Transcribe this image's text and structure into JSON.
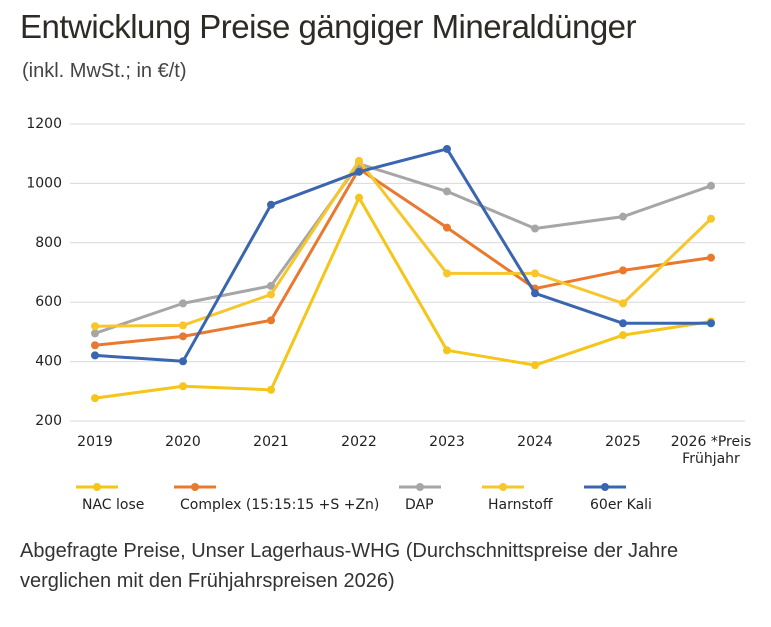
{
  "chart_data": {
    "type": "line",
    "title": "Entwicklung Preise gängiger Mineraldünger",
    "subtitle": "(inkl. MwSt.; in €/t)",
    "caption": "Abgefragte Preise, Unser Lagerhaus-WHG (Durchschnittspreise der Jahre verglichen mit den Frühjahrspreisen 2026)",
    "categories": [
      "2019",
      "2020",
      "2021",
      "2022",
      "2023",
      "2024",
      "2025",
      "2026 *Preis Frühjahr"
    ],
    "series": [
      {
        "name": "NAC lose",
        "color": "#f5c518",
        "values": [
          277,
          317,
          305,
          952,
          438,
          388,
          489,
          535
        ]
      },
      {
        "name": "Complex (15:15:15 +S +Zn)",
        "color": "#e8792f",
        "values": [
          455,
          485,
          539,
          1049,
          851,
          646,
          707,
          750
        ]
      },
      {
        "name": "DAP",
        "color": "#a6a6a6",
        "values": [
          495,
          596,
          655,
          1066,
          973,
          848,
          888,
          992
        ]
      },
      {
        "name": "Harnstoff",
        "color": "#f7c62b",
        "values": [
          519,
          522,
          626,
          1076,
          697,
          697,
          596,
          881
        ]
      },
      {
        "name": "60er Kali",
        "color": "#3a66b0",
        "values": [
          421,
          401,
          928,
          1039,
          1116,
          630,
          529,
          529
        ]
      }
    ],
    "ylim": [
      200,
      1200
    ],
    "yticks": [
      200,
      400,
      600,
      800,
      1000,
      1200
    ],
    "grid": true
  }
}
